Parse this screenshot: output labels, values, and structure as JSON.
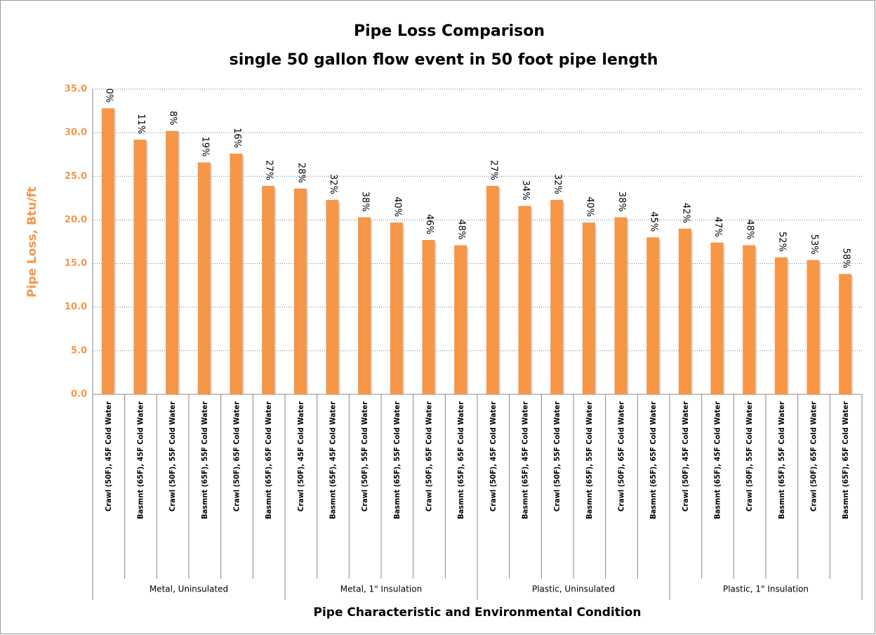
{
  "chart_data": {
    "type": "bar",
    "title": "Pipe Loss Comparison",
    "subtitle": "single 50 gallon flow event in 50 foot pipe length",
    "y_label": "Pipe Loss, Btu/ft",
    "x_label": "Pipe Characteristic and Environmental Condition",
    "groups": [
      "Metal, Uninsulated",
      "Metal, 1\" Insulation",
      "Plastic, Uninsulated",
      "Plastic, 1\" Insulation"
    ],
    "categories": [
      "Crawl (50F), 45F Cold Water",
      "Basmnt (65F), 45F Cold Water",
      "Crawl (50F), 55F Cold Water",
      "Basmnt (65F), 55F Cold Water",
      "Crawl (50F), 65F Cold Water",
      "Basmnt (65F), 65F Cold Water",
      "Crawl (50F), 45F Cold Water",
      "Basmnt (65F), 45F Cold Water",
      "Crawl (50F), 55F Cold Water",
      "Basmnt (65F), 55F Cold Water",
      "Crawl (50F), 65F Cold Water",
      "Basmnt (65F), 65F Cold Water",
      "Crawl (50F), 45F Cold Water",
      "Basmnt (65F), 45F Cold Water",
      "Crawl (50F), 55F Cold Water",
      "Basmnt (65F), 55F Cold Water",
      "Crawl (50F), 65F Cold Water",
      "Basmnt (65F), 65F Cold Water",
      "Crawl (50F), 45F Cold Water",
      "Basmnt (65F), 45F Cold Water",
      "Crawl (50F), 55F Cold Water",
      "Basmnt (65F), 55F Cold Water",
      "Crawl (50F), 65F Cold Water",
      "Basmnt (65F), 65F Cold Water"
    ],
    "values": [
      32.8,
      29.2,
      30.2,
      26.6,
      27.6,
      23.9,
      23.6,
      22.3,
      20.3,
      19.7,
      17.7,
      17.1,
      23.9,
      21.6,
      22.3,
      19.7,
      20.3,
      18.0,
      19.0,
      17.4,
      17.1,
      15.7,
      15.4,
      13.8
    ],
    "reduction_labels": [
      "0%",
      "11%",
      "8%",
      "19%",
      "16%",
      "27%",
      "28%",
      "32%",
      "38%",
      "40%",
      "46%",
      "48%",
      "27%",
      "34%",
      "32%",
      "40%",
      "38%",
      "45%",
      "42%",
      "47%",
      "48%",
      "52%",
      "53%",
      "58%"
    ],
    "color": "#f79646",
    "ylim": [
      0,
      35
    ],
    "yticks": [
      {
        "value": 0,
        "label": "0.0"
      },
      {
        "value": 5,
        "label": "5.0"
      },
      {
        "value": 10,
        "label": "10.0"
      },
      {
        "value": 15,
        "label": "15.0"
      },
      {
        "value": 20,
        "label": "20.0"
      },
      {
        "value": 25,
        "label": "25.0"
      },
      {
        "value": 30,
        "label": "30.0"
      },
      {
        "value": 35,
        "label": "35.0"
      }
    ],
    "grid": true
  }
}
